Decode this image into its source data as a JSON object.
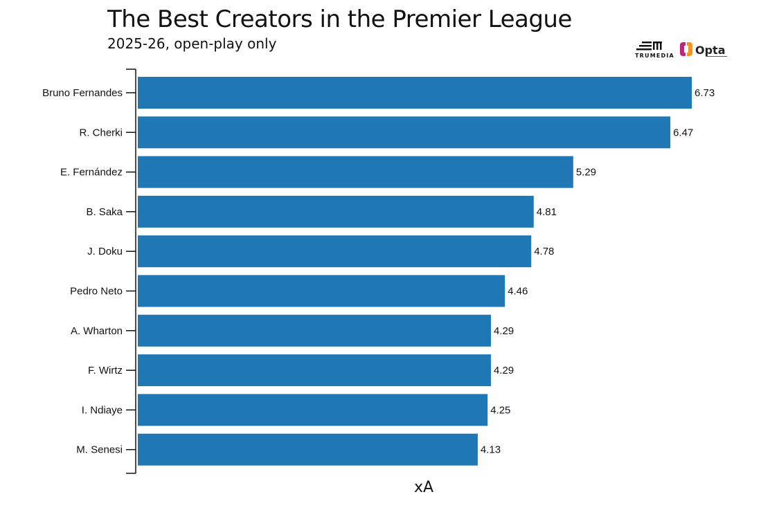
{
  "header": {
    "title": "The Best Creators in the Premier League",
    "subtitle": "2025-26, open-play only",
    "logos": [
      "TRUMEDIA",
      "Opta"
    ]
  },
  "chart_data": {
    "type": "bar",
    "orientation": "horizontal",
    "title": "The Best Creators in the Premier League",
    "subtitle": "2025-26, open-play only",
    "xlabel": "xA",
    "ylabel": "",
    "categories": [
      "Bruno Fernandes",
      "R. Cherki",
      "E. Fernández",
      "B. Saka",
      "J. Doku",
      "Pedro Neto",
      "A. Wharton",
      "F. Wirtz",
      "I. Ndiaye",
      "M. Senesi"
    ],
    "values": [
      6.73,
      6.47,
      5.29,
      4.81,
      4.78,
      4.46,
      4.29,
      4.29,
      4.25,
      4.13
    ],
    "data_labels": [
      "6.73",
      "6.47",
      "5.29",
      "4.81",
      "4.78",
      "4.46",
      "4.29",
      "4.29",
      "4.25",
      "4.13"
    ],
    "xlim": [
      0,
      6.73
    ],
    "grid": false,
    "bar_color": "#1f77b4"
  }
}
